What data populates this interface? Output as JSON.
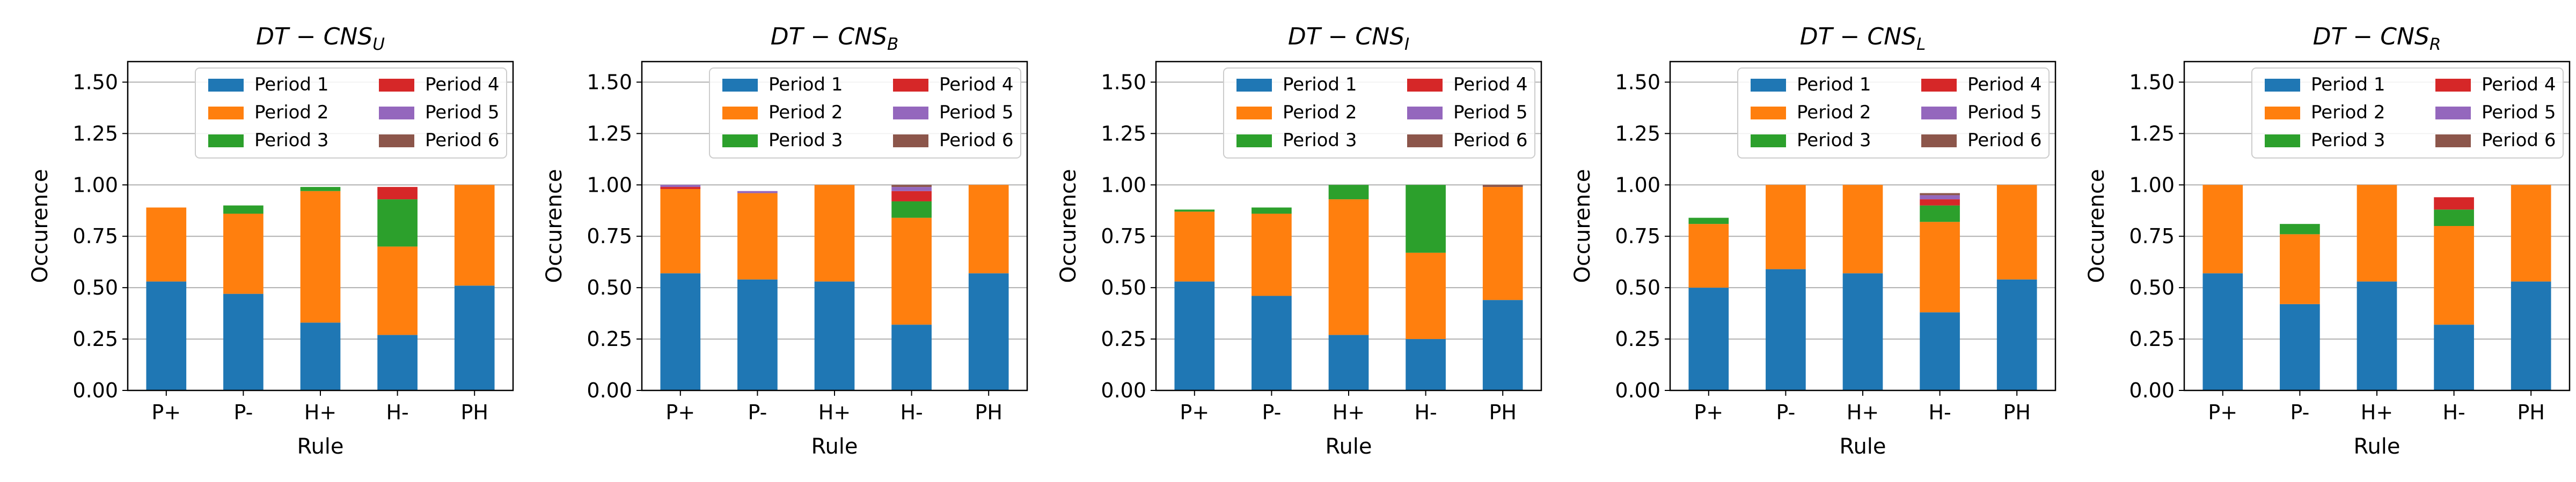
{
  "chart_data": [
    {
      "type": "bar",
      "stacked": true,
      "title": "DT − CNS",
      "title_subscript": "U",
      "xlabel": "Rule",
      "ylabel": "Occurence",
      "categories": [
        "P+",
        "P-",
        "H+",
        "H-",
        "PH"
      ],
      "ylim": [
        0,
        1.6
      ],
      "yticks": [
        "0.00",
        "0.25",
        "0.50",
        "0.75",
        "1.00",
        "1.25",
        "1.50"
      ],
      "grid": "horizontal",
      "legend_position": "top-right",
      "series": [
        {
          "name": "Period 1",
          "values": [
            0.53,
            0.47,
            0.33,
            0.27,
            0.51
          ]
        },
        {
          "name": "Period 2",
          "values": [
            0.36,
            0.39,
            0.64,
            0.43,
            0.49
          ]
        },
        {
          "name": "Period 3",
          "values": [
            0.0,
            0.04,
            0.02,
            0.23,
            0.0
          ]
        },
        {
          "name": "Period 4",
          "values": [
            0.0,
            0.0,
            0.0,
            0.06,
            0.0
          ]
        },
        {
          "name": "Period 5",
          "values": [
            0.0,
            0.0,
            0.0,
            0.0,
            0.0
          ]
        },
        {
          "name": "Period 6",
          "values": [
            0.0,
            0.0,
            0.0,
            0.0,
            0.0
          ]
        }
      ]
    },
    {
      "type": "bar",
      "stacked": true,
      "title": "DT − CNS",
      "title_subscript": "B",
      "xlabel": "Rule",
      "ylabel": "Occurence",
      "categories": [
        "P+",
        "P-",
        "H+",
        "H-",
        "PH"
      ],
      "ylim": [
        0,
        1.6
      ],
      "yticks": [
        "0.00",
        "0.25",
        "0.50",
        "0.75",
        "1.00",
        "1.25",
        "1.50"
      ],
      "grid": "horizontal",
      "legend_position": "top-right",
      "series": [
        {
          "name": "Period 1",
          "values": [
            0.57,
            0.54,
            0.53,
            0.32,
            0.57
          ]
        },
        {
          "name": "Period 2",
          "values": [
            0.41,
            0.42,
            0.47,
            0.52,
            0.43
          ]
        },
        {
          "name": "Period 3",
          "values": [
            0.0,
            0.0,
            0.0,
            0.08,
            0.0
          ]
        },
        {
          "name": "Period 4",
          "values": [
            0.01,
            0.0,
            0.0,
            0.05,
            0.0
          ]
        },
        {
          "name": "Period 5",
          "values": [
            0.01,
            0.01,
            0.0,
            0.02,
            0.0
          ]
        },
        {
          "name": "Period 6",
          "values": [
            0.0,
            0.0,
            0.0,
            0.01,
            0.0
          ]
        }
      ]
    },
    {
      "type": "bar",
      "stacked": true,
      "title": "DT − CNS",
      "title_subscript": "I",
      "xlabel": "Rule",
      "ylabel": "Occurence",
      "categories": [
        "P+",
        "P-",
        "H+",
        "H-",
        "PH"
      ],
      "ylim": [
        0,
        1.6
      ],
      "yticks": [
        "0.00",
        "0.25",
        "0.50",
        "0.75",
        "1.00",
        "1.25",
        "1.50"
      ],
      "grid": "horizontal",
      "legend_position": "top-right",
      "series": [
        {
          "name": "Period 1",
          "values": [
            0.53,
            0.46,
            0.27,
            0.25,
            0.44
          ]
        },
        {
          "name": "Period 2",
          "values": [
            0.34,
            0.4,
            0.66,
            0.42,
            0.55
          ]
        },
        {
          "name": "Period 3",
          "values": [
            0.01,
            0.03,
            0.07,
            0.33,
            0.0
          ]
        },
        {
          "name": "Period 4",
          "values": [
            0.0,
            0.0,
            0.0,
            0.0,
            0.0
          ]
        },
        {
          "name": "Period 5",
          "values": [
            0.0,
            0.0,
            0.0,
            0.0,
            0.0
          ]
        },
        {
          "name": "Period 6",
          "values": [
            0.0,
            0.0,
            0.0,
            0.0,
            0.01
          ]
        }
      ]
    },
    {
      "type": "bar",
      "stacked": true,
      "title": "DT − CNS",
      "title_subscript": "L",
      "xlabel": "Rule",
      "ylabel": "Occurence",
      "categories": [
        "P+",
        "P-",
        "H+",
        "H-",
        "PH"
      ],
      "ylim": [
        0,
        1.6
      ],
      "yticks": [
        "0.00",
        "0.25",
        "0.50",
        "0.75",
        "1.00",
        "1.25",
        "1.50"
      ],
      "grid": "horizontal",
      "legend_position": "top-right",
      "series": [
        {
          "name": "Period 1",
          "values": [
            0.5,
            0.59,
            0.57,
            0.38,
            0.54
          ]
        },
        {
          "name": "Period 2",
          "values": [
            0.31,
            0.41,
            0.43,
            0.44,
            0.46
          ]
        },
        {
          "name": "Period 3",
          "values": [
            0.03,
            0.0,
            0.0,
            0.08,
            0.0
          ]
        },
        {
          "name": "Period 4",
          "values": [
            0.0,
            0.0,
            0.0,
            0.03,
            0.0
          ]
        },
        {
          "name": "Period 5",
          "values": [
            0.0,
            0.0,
            0.0,
            0.02,
            0.0
          ]
        },
        {
          "name": "Period 6",
          "values": [
            0.0,
            0.0,
            0.0,
            0.01,
            0.0
          ]
        }
      ]
    },
    {
      "type": "bar",
      "stacked": true,
      "title": "DT − CNS",
      "title_subscript": "R",
      "xlabel": "Rule",
      "ylabel": "Occurence",
      "categories": [
        "P+",
        "P-",
        "H+",
        "H-",
        "PH"
      ],
      "ylim": [
        0,
        1.6
      ],
      "yticks": [
        "0.00",
        "0.25",
        "0.50",
        "0.75",
        "1.00",
        "1.25",
        "1.50"
      ],
      "grid": "horizontal",
      "legend_position": "top-right",
      "series": [
        {
          "name": "Period 1",
          "values": [
            0.57,
            0.42,
            0.53,
            0.32,
            0.53
          ]
        },
        {
          "name": "Period 2",
          "values": [
            0.43,
            0.34,
            0.47,
            0.48,
            0.47
          ]
        },
        {
          "name": "Period 3",
          "values": [
            0.0,
            0.05,
            0.0,
            0.08,
            0.0
          ]
        },
        {
          "name": "Period 4",
          "values": [
            0.0,
            0.0,
            0.0,
            0.06,
            0.0
          ]
        },
        {
          "name": "Period 5",
          "values": [
            0.0,
            0.0,
            0.0,
            0.0,
            0.0
          ]
        },
        {
          "name": "Period 6",
          "values": [
            0.0,
            0.0,
            0.0,
            0.0,
            0.0
          ]
        }
      ]
    }
  ],
  "colors": {
    "Period 1": "#1f77b4",
    "Period 2": "#ff7f0e",
    "Period 3": "#2ca02c",
    "Period 4": "#d62728",
    "Period 5": "#9467bd",
    "Period 6": "#8c564b",
    "grid": "#b0b0b0",
    "axis": "#000000"
  }
}
